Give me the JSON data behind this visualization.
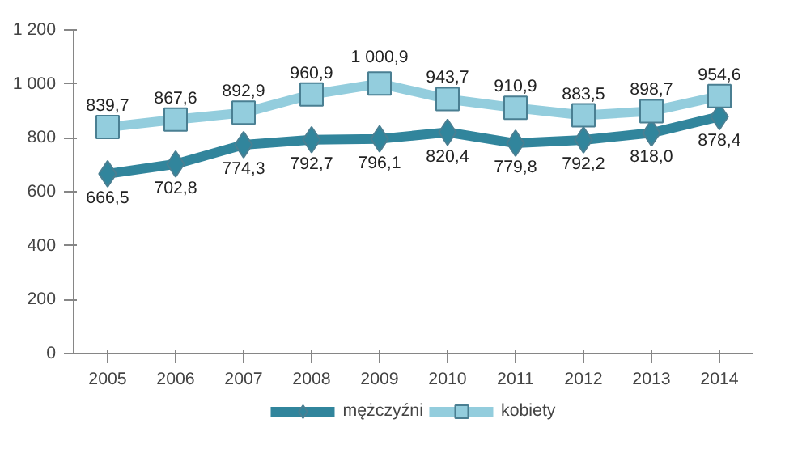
{
  "chart_data": {
    "type": "line",
    "categories": [
      "2005",
      "2006",
      "2007",
      "2008",
      "2009",
      "2010",
      "2011",
      "2012",
      "2013",
      "2014"
    ],
    "ylim": [
      0,
      1200
    ],
    "yticks": [
      0,
      200,
      400,
      600,
      800,
      {
        "value": 1000,
        "label": "1 000"
      },
      {
        "value": 1200,
        "label": "1 200"
      }
    ],
    "grid": false,
    "legend": "bottom",
    "series": [
      {
        "name": "mężczyźni",
        "color": "#31859c",
        "marker": "diamond",
        "values": [
          666.5,
          702.8,
          774.3,
          792.7,
          796.1,
          820.4,
          779.8,
          792.2,
          818.0,
          878.4
        ],
        "value_labels": [
          "666,5",
          "702,8",
          "774,3",
          "792,7",
          "796,1",
          "820,4",
          "779,8",
          "792,2",
          "818,0",
          "878,4"
        ]
      },
      {
        "name": "kobiety",
        "color": "#93cddd",
        "marker": "square",
        "values": [
          839.7,
          867.6,
          892.9,
          960.9,
          1000.9,
          943.7,
          910.9,
          883.5,
          898.7,
          954.6
        ],
        "value_labels": [
          "839,7",
          "867,6",
          "892,9",
          "960,9",
          "1 000,9",
          "943,7",
          "910,9",
          "883,5",
          "898,7",
          "954,6"
        ]
      }
    ]
  }
}
